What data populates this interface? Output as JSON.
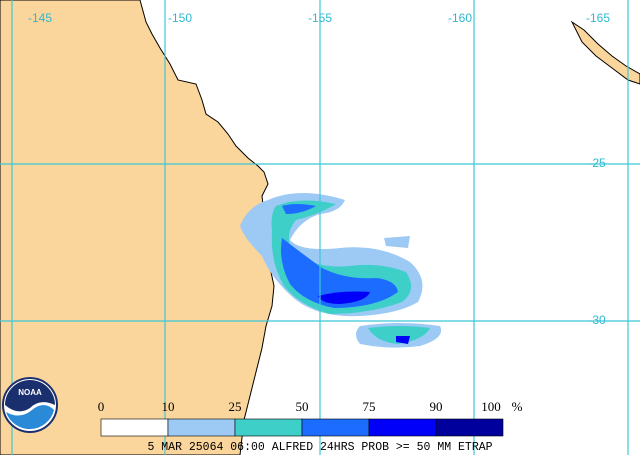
{
  "map": {
    "lon_labels": [
      "-145",
      "-150",
      "-155",
      "-160",
      "-165"
    ],
    "lat_labels": [
      "-25",
      "-30"
    ],
    "logo": "NOAA",
    "legend": {
      "ticks": [
        "0",
        "10",
        "25",
        "50",
        "75",
        "90",
        "100"
      ],
      "unit": "%",
      "colors": [
        "#ffffff",
        "#9ccaf5",
        "#3fcfc9",
        "#1c6cff",
        "#0000fa",
        "#00009c"
      ]
    },
    "caption": "5 MAR 25064 06:00 ALFRED 24HRS PROB >= 50 MM ETRAP"
  }
}
